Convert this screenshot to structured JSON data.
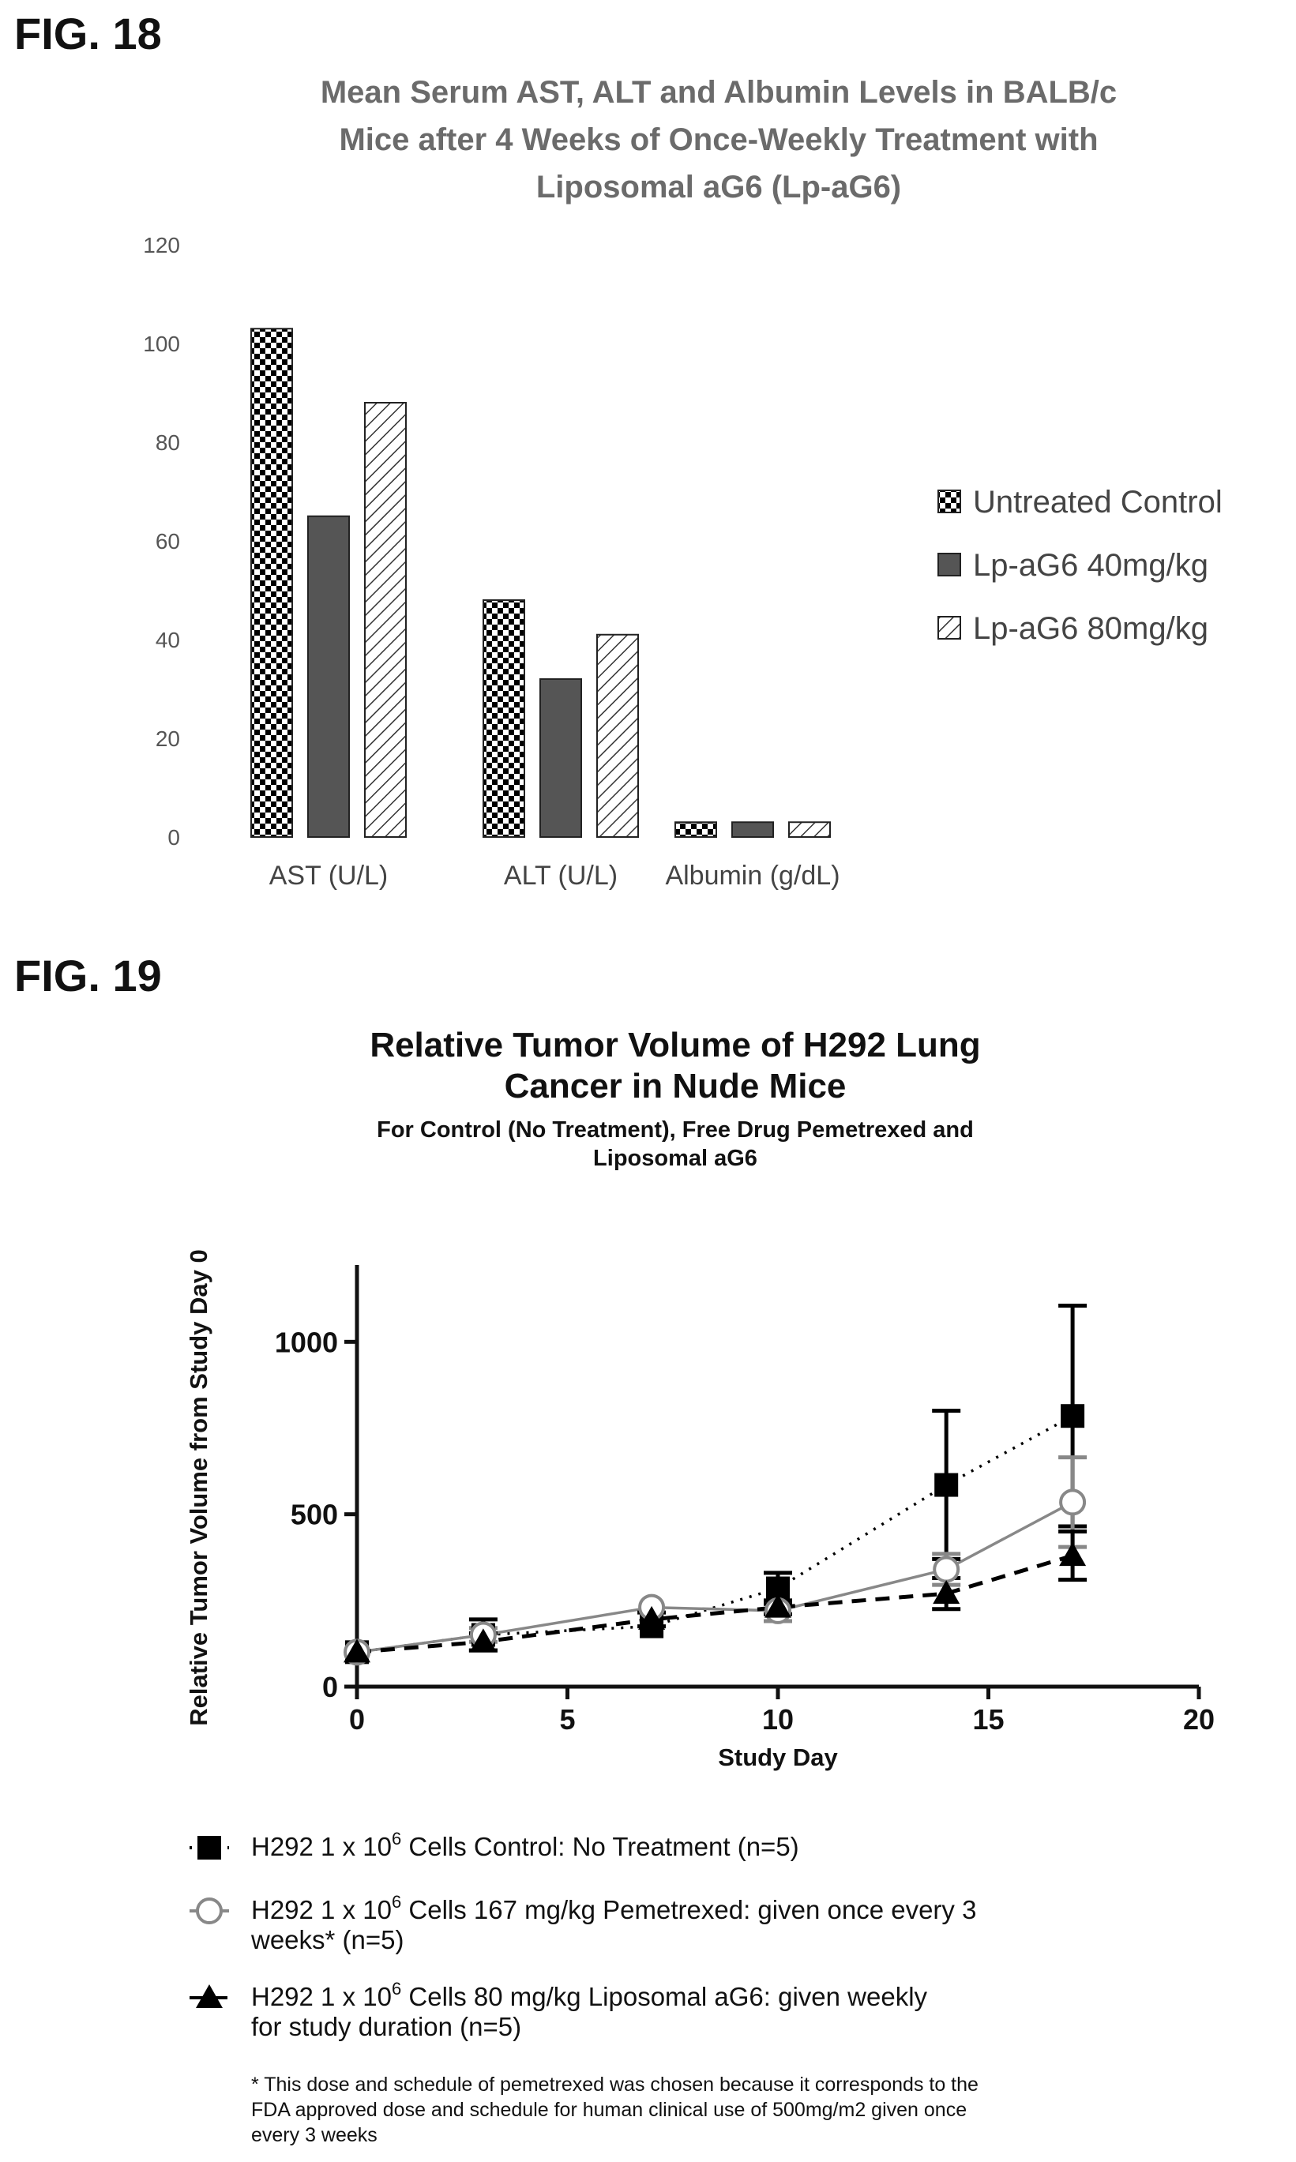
{
  "fig18": {
    "label": "FIG. 18",
    "title_lines": [
      "Mean Serum AST, ALT and Albumin Levels in BALB/c",
      "Mice after 4 Weeks of Once-Weekly Treatment with",
      "Liposomal aG6 (Lp-aG6)"
    ]
  },
  "fig19": {
    "label": "FIG. 19",
    "title_lines": [
      "Relative Tumor Volume of H292 Lung",
      "Cancer in Nude Mice"
    ],
    "subtitle_lines": [
      "For Control (No Treatment), Free Drug Pemetrexed and",
      "Liposomal aG6"
    ],
    "legend": [
      {
        "prefix": "H292 1 x 10",
        "sup": "6",
        "lines": [
          " Cells Control: No Treatment (n=5)"
        ]
      },
      {
        "prefix": "H292 1 x 10",
        "sup": "6",
        "lines": [
          " Cells 167 mg/kg Pemetrexed: given once every 3",
          "weeks* (n=5)"
        ]
      },
      {
        "prefix": "H292 1 x 10",
        "sup": "6",
        "lines": [
          " Cells 80 mg/kg Liposomal aG6: given weekly",
          "for study duration (n=5)"
        ]
      }
    ],
    "footnote_lines": [
      "* This dose and schedule of pemetrexed was chosen because it corresponds to the",
      "FDA approved dose and schedule  for human clinical use of 500mg/m2 given once",
      "every 3 weeks"
    ]
  },
  "chart_data": [
    {
      "type": "bar",
      "title": "Mean Serum AST, ALT and Albumin Levels in BALB/c Mice after 4 Weeks of Once-Weekly Treatment with Liposomal aG6 (Lp-aG6)",
      "categories": [
        "AST (U/L)",
        "ALT (U/L)",
        "Albumin (g/dL)"
      ],
      "series": [
        {
          "name": "Untreated Control",
          "values": [
            103,
            48,
            3
          ],
          "pattern": "checker",
          "color": "#000000"
        },
        {
          "name": "Lp-aG6 40mg/kg",
          "values": [
            65,
            32,
            3
          ],
          "pattern": "solid",
          "color": "#555555"
        },
        {
          "name": "Lp-aG6 80mg/kg",
          "values": [
            88,
            41,
            3
          ],
          "pattern": "hatch",
          "color": "#000000"
        }
      ],
      "ylim": [
        0,
        120
      ],
      "yticks": [
        0,
        20,
        40,
        60,
        80,
        100,
        120
      ],
      "legend_position": "right",
      "xlabel": "",
      "ylabel": ""
    },
    {
      "type": "line",
      "title": "Relative Tumor Volume of H292 Lung Cancer in Nude Mice",
      "subtitle": "For Control (No Treatment), Free Drug Pemetrexed and Liposomal aG6",
      "xlabel": "Study Day",
      "ylabel": "Relative Tumor Volume from Study Day 0",
      "xlim": [
        0,
        20
      ],
      "ylim": [
        0,
        1200
      ],
      "xticks": [
        0,
        5,
        10,
        15,
        20
      ],
      "yticks": [
        0,
        500,
        1000
      ],
      "series": [
        {
          "name": "Control: No Treatment",
          "marker": "square",
          "line": "dotted",
          "color": "#000000",
          "x": [
            0,
            3,
            7,
            10,
            14,
            17
          ],
          "y": [
            100,
            150,
            175,
            285,
            585,
            785
          ],
          "err": [
            0,
            45,
            0,
            45,
            215,
            320
          ]
        },
        {
          "name": "Pemetrexed",
          "marker": "circle-open",
          "line": "solid",
          "color": "#888888",
          "x": [
            0,
            3,
            7,
            10,
            14,
            17
          ],
          "y": [
            100,
            150,
            230,
            220,
            340,
            535
          ],
          "err": [
            0,
            20,
            0,
            30,
            45,
            130
          ]
        },
        {
          "name": "Liposomal aG6",
          "marker": "triangle",
          "line": "dashed",
          "color": "#000000",
          "x": [
            0,
            3,
            7,
            10,
            14,
            17
          ],
          "y": [
            100,
            130,
            195,
            230,
            270,
            380
          ],
          "err": [
            0,
            25,
            20,
            20,
            45,
            70
          ]
        }
      ],
      "legend_position": "bottom"
    }
  ]
}
